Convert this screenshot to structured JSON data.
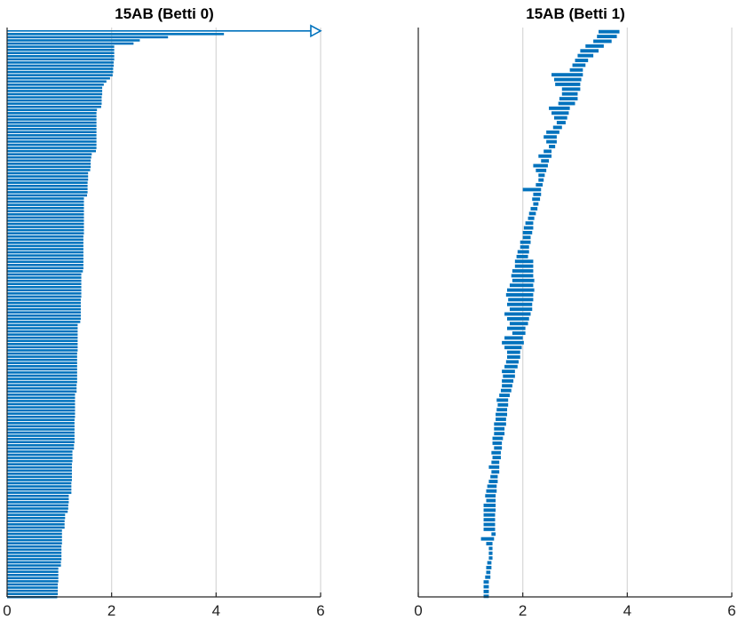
{
  "chart_data": [
    {
      "type": "barcode",
      "title": "15AB (Betti 0)",
      "xlabel": "",
      "ylabel": "",
      "xlim": [
        0,
        6
      ],
      "xticks": [
        "0",
        "2",
        "4",
        "6"
      ],
      "grid": "vertical",
      "color": "#0072BD",
      "infinite_bar": {
        "birth": 0,
        "end_arrow_at": 6
      },
      "bars": [
        [
          0,
          4.15
        ],
        [
          0,
          3.08
        ],
        [
          0,
          2.54
        ],
        [
          0,
          2.42
        ],
        [
          0,
          2.05
        ],
        [
          0,
          2.05
        ],
        [
          0,
          2.05
        ],
        [
          0,
          2.05
        ],
        [
          0,
          2.05
        ],
        [
          0,
          2.04
        ],
        [
          0,
          2.04
        ],
        [
          0,
          2.03
        ],
        [
          0,
          2.03
        ],
        [
          0,
          2.02
        ],
        [
          0,
          1.97
        ],
        [
          0,
          1.9
        ],
        [
          0,
          1.85
        ],
        [
          0,
          1.82
        ],
        [
          0,
          1.82
        ],
        [
          0,
          1.82
        ],
        [
          0,
          1.81
        ],
        [
          0,
          1.81
        ],
        [
          0,
          1.81
        ],
        [
          0,
          1.8
        ],
        [
          0,
          1.72
        ],
        [
          0,
          1.71
        ],
        [
          0,
          1.71
        ],
        [
          0,
          1.71
        ],
        [
          0,
          1.71
        ],
        [
          0,
          1.71
        ],
        [
          0,
          1.71
        ],
        [
          0,
          1.71
        ],
        [
          0,
          1.71
        ],
        [
          0,
          1.71
        ],
        [
          0,
          1.71
        ],
        [
          0,
          1.71
        ],
        [
          0,
          1.71
        ],
        [
          0,
          1.7
        ],
        [
          0,
          1.62
        ],
        [
          0,
          1.61
        ],
        [
          0,
          1.6
        ],
        [
          0,
          1.6
        ],
        [
          0,
          1.6
        ],
        [
          0,
          1.59
        ],
        [
          0,
          1.55
        ],
        [
          0,
          1.55
        ],
        [
          0,
          1.55
        ],
        [
          0,
          1.54
        ],
        [
          0,
          1.54
        ],
        [
          0,
          1.54
        ],
        [
          0,
          1.54
        ],
        [
          0,
          1.53
        ],
        [
          0,
          1.47
        ],
        [
          0,
          1.47
        ],
        [
          0,
          1.47
        ],
        [
          0,
          1.47
        ],
        [
          0,
          1.47
        ],
        [
          0,
          1.47
        ],
        [
          0,
          1.47
        ],
        [
          0,
          1.47
        ],
        [
          0,
          1.47
        ],
        [
          0,
          1.47
        ],
        [
          0,
          1.47
        ],
        [
          0,
          1.47
        ],
        [
          0,
          1.46
        ],
        [
          0,
          1.46
        ],
        [
          0,
          1.46
        ],
        [
          0,
          1.46
        ],
        [
          0,
          1.46
        ],
        [
          0,
          1.46
        ],
        [
          0,
          1.46
        ],
        [
          0,
          1.46
        ],
        [
          0,
          1.46
        ],
        [
          0,
          1.46
        ],
        [
          0,
          1.46
        ],
        [
          0,
          1.45
        ],
        [
          0,
          1.42
        ],
        [
          0,
          1.42
        ],
        [
          0,
          1.42
        ],
        [
          0,
          1.42
        ],
        [
          0,
          1.42
        ],
        [
          0,
          1.42
        ],
        [
          0,
          1.42
        ],
        [
          0,
          1.42
        ],
        [
          0,
          1.41
        ],
        [
          0,
          1.41
        ],
        [
          0,
          1.41
        ],
        [
          0,
          1.41
        ],
        [
          0,
          1.41
        ],
        [
          0,
          1.41
        ],
        [
          0,
          1.41
        ],
        [
          0,
          1.4
        ],
        [
          0,
          1.35
        ],
        [
          0,
          1.35
        ],
        [
          0,
          1.35
        ],
        [
          0,
          1.35
        ],
        [
          0,
          1.35
        ],
        [
          0,
          1.35
        ],
        [
          0,
          1.35
        ],
        [
          0,
          1.35
        ],
        [
          0,
          1.35
        ],
        [
          0,
          1.34
        ],
        [
          0,
          1.34
        ],
        [
          0,
          1.34
        ],
        [
          0,
          1.34
        ],
        [
          0,
          1.34
        ],
        [
          0,
          1.34
        ],
        [
          0,
          1.34
        ],
        [
          0,
          1.34
        ],
        [
          0,
          1.34
        ],
        [
          0,
          1.34
        ],
        [
          0,
          1.33
        ],
        [
          0,
          1.33
        ],
        [
          0,
          1.33
        ],
        [
          0,
          1.3
        ],
        [
          0,
          1.3
        ],
        [
          0,
          1.3
        ],
        [
          0,
          1.3
        ],
        [
          0,
          1.3
        ],
        [
          0,
          1.3
        ],
        [
          0,
          1.3
        ],
        [
          0,
          1.3
        ],
        [
          0,
          1.29
        ],
        [
          0,
          1.29
        ],
        [
          0,
          1.29
        ],
        [
          0,
          1.29
        ],
        [
          0,
          1.29
        ],
        [
          0,
          1.29
        ],
        [
          0,
          1.29
        ],
        [
          0,
          1.29
        ],
        [
          0,
          1.28
        ],
        [
          0,
          1.28
        ],
        [
          0,
          1.25
        ],
        [
          0,
          1.25
        ],
        [
          0,
          1.25
        ],
        [
          0,
          1.25
        ],
        [
          0,
          1.24
        ],
        [
          0,
          1.24
        ],
        [
          0,
          1.24
        ],
        [
          0,
          1.24
        ],
        [
          0,
          1.24
        ],
        [
          0,
          1.24
        ],
        [
          0,
          1.23
        ],
        [
          0,
          1.23
        ],
        [
          0,
          1.23
        ],
        [
          0,
          1.23
        ],
        [
          0,
          1.18
        ],
        [
          0,
          1.18
        ],
        [
          0,
          1.18
        ],
        [
          0,
          1.17
        ],
        [
          0,
          1.17
        ],
        [
          0,
          1.16
        ],
        [
          0,
          1.11
        ],
        [
          0,
          1.11
        ],
        [
          0,
          1.1
        ],
        [
          0,
          1.1
        ],
        [
          0,
          1.1
        ],
        [
          0,
          1.05
        ],
        [
          0,
          1.05
        ],
        [
          0,
          1.05
        ],
        [
          0,
          1.05
        ],
        [
          0,
          1.05
        ],
        [
          0,
          1.04
        ],
        [
          0,
          1.04
        ],
        [
          0,
          1.04
        ],
        [
          0,
          1.04
        ],
        [
          0,
          1.04
        ],
        [
          0,
          1.03
        ],
        [
          0,
          1.03
        ],
        [
          0,
          0.98
        ],
        [
          0,
          0.98
        ],
        [
          0,
          0.98
        ],
        [
          0,
          0.98
        ],
        [
          0,
          0.98
        ],
        [
          0,
          0.97
        ],
        [
          0,
          0.97
        ],
        [
          0,
          0.97
        ],
        [
          0,
          0.97
        ],
        [
          0,
          0.96
        ]
      ]
    },
    {
      "type": "barcode",
      "title": "15AB (Betti 1)",
      "xlabel": "",
      "ylabel": "",
      "xlim": [
        0,
        6
      ],
      "xticks": [
        "0",
        "2",
        "4",
        "6"
      ],
      "grid": "vertical",
      "color": "#0072BD",
      "bars": [
        [
          3.45,
          3.85
        ],
        [
          3.42,
          3.8
        ],
        [
          3.35,
          3.7
        ],
        [
          3.2,
          3.55
        ],
        [
          3.1,
          3.45
        ],
        [
          3.05,
          3.35
        ],
        [
          3.0,
          3.25
        ],
        [
          2.95,
          3.2
        ],
        [
          2.9,
          3.15
        ],
        [
          2.55,
          3.15
        ],
        [
          2.6,
          3.12
        ],
        [
          2.62,
          3.1
        ],
        [
          2.75,
          3.1
        ],
        [
          2.75,
          3.05
        ],
        [
          2.7,
          3.05
        ],
        [
          2.68,
          3.0
        ],
        [
          2.5,
          2.9
        ],
        [
          2.55,
          2.88
        ],
        [
          2.6,
          2.85
        ],
        [
          2.65,
          2.82
        ],
        [
          2.58,
          2.75
        ],
        [
          2.45,
          2.7
        ],
        [
          2.4,
          2.65
        ],
        [
          2.45,
          2.65
        ],
        [
          2.5,
          2.62
        ],
        [
          2.4,
          2.55
        ],
        [
          2.3,
          2.55
        ],
        [
          2.35,
          2.5
        ],
        [
          2.2,
          2.48
        ],
        [
          2.25,
          2.45
        ],
        [
          2.3,
          2.42
        ],
        [
          2.3,
          2.4
        ],
        [
          2.25,
          2.38
        ],
        [
          2.0,
          2.35
        ],
        [
          2.2,
          2.35
        ],
        [
          2.18,
          2.33
        ],
        [
          2.2,
          2.3
        ],
        [
          2.15,
          2.28
        ],
        [
          2.12,
          2.25
        ],
        [
          2.1,
          2.22
        ],
        [
          2.05,
          2.2
        ],
        [
          2.02,
          2.2
        ],
        [
          2.0,
          2.18
        ],
        [
          2.0,
          2.15
        ],
        [
          1.95,
          2.15
        ],
        [
          1.95,
          2.12
        ],
        [
          1.9,
          2.12
        ],
        [
          1.88,
          2.1
        ],
        [
          1.85,
          2.2
        ],
        [
          1.85,
          2.2
        ],
        [
          1.8,
          2.2
        ],
        [
          1.78,
          2.2
        ],
        [
          1.8,
          2.22
        ],
        [
          1.75,
          2.2
        ],
        [
          1.7,
          2.22
        ],
        [
          1.68,
          2.2
        ],
        [
          1.72,
          2.2
        ],
        [
          1.7,
          2.18
        ],
        [
          1.75,
          2.18
        ],
        [
          1.65,
          2.15
        ],
        [
          1.7,
          2.12
        ],
        [
          1.75,
          2.1
        ],
        [
          1.7,
          2.05
        ],
        [
          1.8,
          2.05
        ],
        [
          1.65,
          2.0
        ],
        [
          1.6,
          2.02
        ],
        [
          1.65,
          1.98
        ],
        [
          1.7,
          1.95
        ],
        [
          1.7,
          1.95
        ],
        [
          1.68,
          1.92
        ],
        [
          1.65,
          1.9
        ],
        [
          1.6,
          1.85
        ],
        [
          1.62,
          1.85
        ],
        [
          1.6,
          1.82
        ],
        [
          1.6,
          1.8
        ],
        [
          1.58,
          1.78
        ],
        [
          1.55,
          1.75
        ],
        [
          1.5,
          1.72
        ],
        [
          1.52,
          1.72
        ],
        [
          1.5,
          1.7
        ],
        [
          1.48,
          1.7
        ],
        [
          1.48,
          1.68
        ],
        [
          1.45,
          1.68
        ],
        [
          1.45,
          1.65
        ],
        [
          1.45,
          1.65
        ],
        [
          1.42,
          1.62
        ],
        [
          1.42,
          1.6
        ],
        [
          1.45,
          1.6
        ],
        [
          1.4,
          1.58
        ],
        [
          1.42,
          1.58
        ],
        [
          1.4,
          1.55
        ],
        [
          1.35,
          1.55
        ],
        [
          1.4,
          1.55
        ],
        [
          1.38,
          1.52
        ],
        [
          1.35,
          1.52
        ],
        [
          1.32,
          1.5
        ],
        [
          1.3,
          1.5
        ],
        [
          1.28,
          1.48
        ],
        [
          1.3,
          1.48
        ],
        [
          1.25,
          1.48
        ],
        [
          1.25,
          1.48
        ],
        [
          1.25,
          1.47
        ],
        [
          1.25,
          1.47
        ],
        [
          1.25,
          1.47
        ],
        [
          1.25,
          1.47
        ],
        [
          1.4,
          1.48
        ],
        [
          1.2,
          1.45
        ],
        [
          1.3,
          1.42
        ],
        [
          1.35,
          1.42
        ],
        [
          1.35,
          1.42
        ],
        [
          1.35,
          1.42
        ],
        [
          1.32,
          1.4
        ],
        [
          1.3,
          1.4
        ],
        [
          1.3,
          1.38
        ],
        [
          1.28,
          1.38
        ],
        [
          1.25,
          1.35
        ],
        [
          1.25,
          1.35
        ],
        [
          1.25,
          1.35
        ],
        [
          1.25,
          1.35
        ]
      ]
    }
  ]
}
